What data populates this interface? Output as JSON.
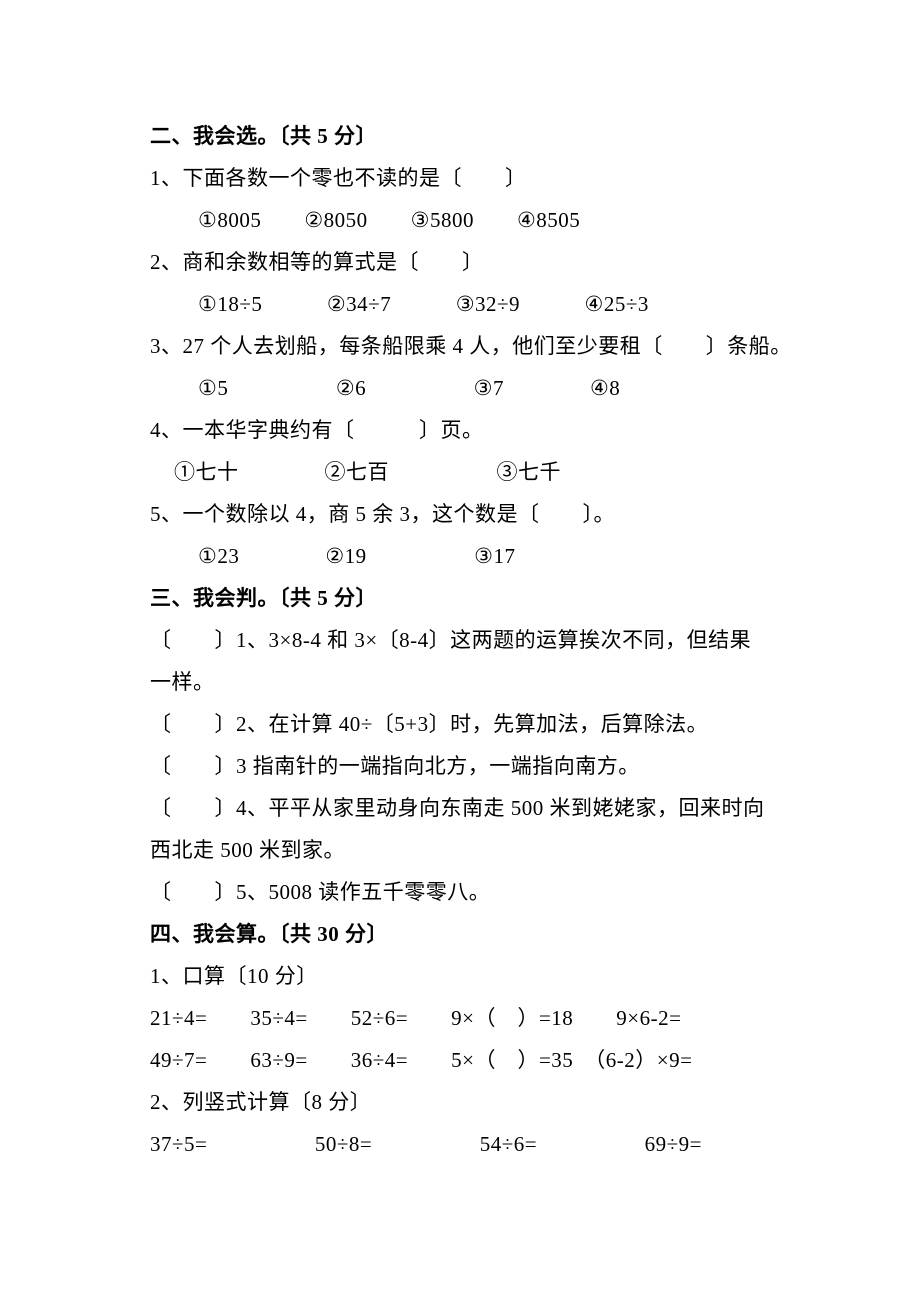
{
  "section2": {
    "heading": "二、我会选。〔共 5 分〕",
    "q1": {
      "stem": "1、下面各数一个零也不读的是〔　　〕",
      "opts": "①8005　　②8050　　③5800　　④8505"
    },
    "q2": {
      "stem": "2、商和余数相等的算式是〔　　〕",
      "opts": "①18÷5　　　②34÷7　　　③32÷9　　　④25÷3"
    },
    "q3": {
      "stem": "3、27 个人去划船，每条船限乘 4 人，他们至少要租〔　　〕条船。",
      "opts": "①5　　　　　②6　　　　　③7　　　　④8"
    },
    "q4": {
      "stem": "4、一本华字典约有〔　　　〕页。",
      "opts": "①七十　　　　②七百　　　　　③七千"
    },
    "q5": {
      "stem": "5、一个数除以 4，商 5 余 3，这个数是〔　　〕。",
      "opts": "①23　　　　②19　　　　　③17"
    }
  },
  "section3": {
    "heading": "三、我会判。〔共 5 分〕",
    "t1a": "〔　　〕1、3×8-4 和 3×〔8-4〕这两题的运算挨次不同，但结果",
    "t1b": "一样。",
    "t2": "〔　　〕2、在计算 40÷〔5+3〕时，先算加法，后算除法。",
    "t3": "〔　　〕3 指南针的一端指向北方，一端指向南方。",
    "t4a": "〔　　〕4、平平从家里动身向东南走 500 米到姥姥家，回来时向",
    "t4b": "西北走 500 米到家。",
    "t5": "〔　　〕5、5008 读作五千零零八。"
  },
  "section4": {
    "heading": "四、我会算。〔共 30 分〕",
    "p1": {
      "title": "1、口算〔10 分〕",
      "row1": "21÷4=　　35÷4=　　52÷6=　　9×（　）=18　　9×6-2=",
      "row2": "49÷7=　　63÷9=　　36÷4=　　5×（　）=35　（6-2）×9="
    },
    "p2": {
      "title": "2、列竖式计算〔8 分〕",
      "row1": "37÷5=　　　　　50÷8=　　　　　54÷6=　　　　　69÷9="
    }
  }
}
